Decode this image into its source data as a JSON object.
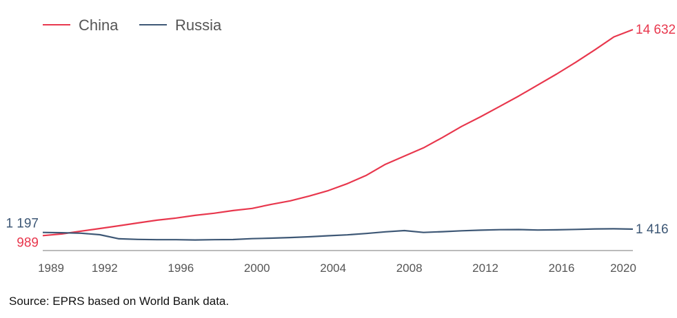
{
  "chart_data": {
    "type": "line",
    "title": "",
    "xlabel": "",
    "ylabel": "",
    "x": [
      1989,
      1990,
      1991,
      1992,
      1993,
      1994,
      1995,
      1996,
      1997,
      1998,
      1999,
      2000,
      2001,
      2002,
      2003,
      2004,
      2005,
      2006,
      2007,
      2008,
      2009,
      2010,
      2011,
      2012,
      2013,
      2014,
      2015,
      2016,
      2017,
      2018,
      2019,
      2020
    ],
    "x_ticks": [
      "1989",
      "1992",
      "1996",
      "2000",
      "2004",
      "2008",
      "2012",
      "2016",
      "2020"
    ],
    "ylim": [
      0,
      14632
    ],
    "grid": false,
    "legend_position": "top-left",
    "series": [
      {
        "name": "China",
        "color": "#e8374d",
        "values": [
          989,
          1100,
          1280,
          1460,
          1640,
          1830,
          2010,
          2150,
          2330,
          2470,
          2650,
          2790,
          3060,
          3290,
          3610,
          3970,
          4430,
          4980,
          5710,
          6260,
          6800,
          7490,
          8220,
          8860,
          9540,
          10230,
          10960,
          11690,
          12470,
          13290,
          14150,
          14632
        ],
        "start_label": "989",
        "end_label": "14 632"
      },
      {
        "name": "Russia",
        "color": "#3d5775",
        "values": [
          1197,
          1180,
          1150,
          1050,
          780,
          740,
          720,
          720,
          700,
          720,
          730,
          790,
          820,
          860,
          910,
          980,
          1040,
          1130,
          1240,
          1320,
          1200,
          1250,
          1310,
          1350,
          1380,
          1390,
          1360,
          1370,
          1400,
          1430,
          1440,
          1416
        ],
        "start_label": "1 197",
        "end_label": "1 416"
      }
    ]
  },
  "source": "Source: EPRS based on World Bank data.",
  "colors": {
    "axis": "#bbbbbb",
    "tick_text": "#555555"
  }
}
